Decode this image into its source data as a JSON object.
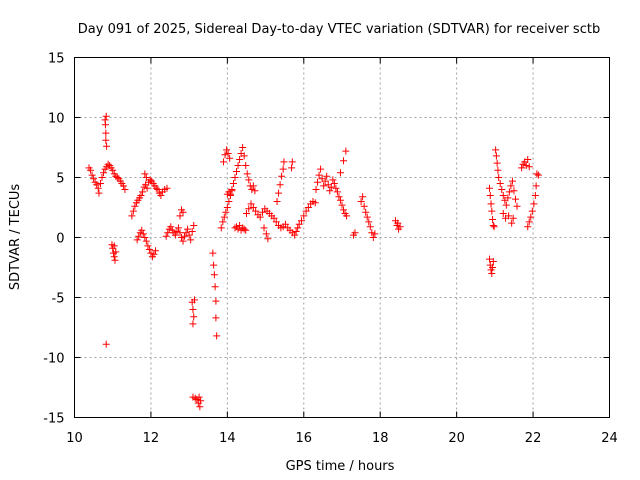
{
  "chart_data": {
    "type": "scatter",
    "title": "Day 091 of 2025, Sidereal Day-to-day VTEC variation (SDTVAR) for receiver sctb",
    "xlabel": "GPS time / hours",
    "ylabel": "SDTVAR / TECUs",
    "xlim": [
      10,
      24
    ],
    "ylim": [
      -15,
      15
    ],
    "x_ticks": [
      10,
      12,
      14,
      16,
      18,
      20,
      22,
      24
    ],
    "y_ticks": [
      -15,
      -10,
      -5,
      0,
      5,
      10,
      15
    ],
    "x_tick_labels": [
      "10",
      "12",
      "14",
      "16",
      "18",
      "20",
      "22",
      "24"
    ],
    "y_tick_labels": [
      "-15",
      "-10",
      "-5",
      "0",
      "5",
      "10",
      "15"
    ],
    "grid": true,
    "marker": "+",
    "series": [
      {
        "name": "SDTVAR",
        "color": "#ff0000",
        "points": [
          [
            10.38,
            5.8
          ],
          [
            10.42,
            5.6
          ],
          [
            10.46,
            5.2
          ],
          [
            10.5,
            4.9
          ],
          [
            10.54,
            4.6
          ],
          [
            10.58,
            4.4
          ],
          [
            10.62,
            4.1
          ],
          [
            10.64,
            3.7
          ],
          [
            10.68,
            4.5
          ],
          [
            10.72,
            5.0
          ],
          [
            10.76,
            5.4
          ],
          [
            10.8,
            5.7
          ],
          [
            10.84,
            5.9
          ],
          [
            10.88,
            6.1
          ],
          [
            10.92,
            6.0
          ],
          [
            10.96,
            5.8
          ],
          [
            11.0,
            5.6
          ],
          [
            11.04,
            5.3
          ],
          [
            11.08,
            5.1
          ],
          [
            11.12,
            5.0
          ],
          [
            11.16,
            4.9
          ],
          [
            11.2,
            4.7
          ],
          [
            11.24,
            4.5
          ],
          [
            11.28,
            4.3
          ],
          [
            11.32,
            4.0
          ],
          [
            10.8,
            9.8
          ],
          [
            10.81,
            9.4
          ],
          [
            10.82,
            8.7
          ],
          [
            10.82,
            8.1
          ],
          [
            10.83,
            10.1
          ],
          [
            10.84,
            7.6
          ],
          [
            10.83,
            -8.9
          ],
          [
            10.98,
            -0.6
          ],
          [
            11.0,
            -0.9
          ],
          [
            11.02,
            -1.3
          ],
          [
            11.04,
            -1.6
          ],
          [
            11.06,
            -1.9
          ],
          [
            11.08,
            -1.2
          ],
          [
            11.04,
            -0.7
          ],
          [
            11.5,
            1.8
          ],
          [
            11.54,
            2.2
          ],
          [
            11.58,
            2.6
          ],
          [
            11.62,
            2.9
          ],
          [
            11.66,
            3.1
          ],
          [
            11.7,
            3.3
          ],
          [
            11.74,
            3.5
          ],
          [
            11.78,
            3.8
          ],
          [
            11.82,
            4.2
          ],
          [
            11.86,
            4.4
          ],
          [
            11.9,
            4.1
          ],
          [
            11.94,
            4.6
          ],
          [
            11.98,
            4.8
          ],
          [
            12.02,
            4.7
          ],
          [
            12.06,
            4.5
          ],
          [
            12.1,
            4.3
          ],
          [
            12.14,
            4.1
          ],
          [
            12.18,
            4.0
          ],
          [
            12.22,
            3.7
          ],
          [
            12.26,
            3.5
          ],
          [
            12.3,
            3.8
          ],
          [
            12.36,
            4.0
          ],
          [
            12.42,
            4.1
          ],
          [
            11.84,
            5.3
          ],
          [
            11.88,
            5.0
          ],
          [
            11.64,
            -0.2
          ],
          [
            11.68,
            0.1
          ],
          [
            11.72,
            0.4
          ],
          [
            11.76,
            0.6
          ],
          [
            11.8,
            0.3
          ],
          [
            11.84,
            0.0
          ],
          [
            11.88,
            -0.3
          ],
          [
            11.92,
            -0.7
          ],
          [
            11.96,
            -1.0
          ],
          [
            12.0,
            -1.3
          ],
          [
            12.04,
            -1.6
          ],
          [
            12.08,
            -1.4
          ],
          [
            12.12,
            -1.1
          ],
          [
            12.4,
            0.1
          ],
          [
            12.44,
            0.4
          ],
          [
            12.48,
            0.7
          ],
          [
            12.52,
            0.9
          ],
          [
            12.56,
            0.6
          ],
          [
            12.6,
            0.4
          ],
          [
            12.64,
            0.2
          ],
          [
            12.68,
            0.5
          ],
          [
            12.72,
            0.8
          ],
          [
            12.76,
            0.4
          ],
          [
            12.8,
            0.0
          ],
          [
            12.84,
            -0.3
          ],
          [
            12.88,
            0.1
          ],
          [
            12.92,
            0.4
          ],
          [
            12.96,
            0.7
          ],
          [
            13.0,
            0.2
          ],
          [
            13.04,
            -0.2
          ],
          [
            13.08,
            0.5
          ],
          [
            13.12,
            1.0
          ],
          [
            12.76,
            1.8
          ],
          [
            12.8,
            2.3
          ],
          [
            12.84,
            2.1
          ],
          [
            13.08,
            -5.4
          ],
          [
            13.1,
            -6.0
          ],
          [
            13.12,
            -6.6
          ],
          [
            13.1,
            -7.2
          ],
          [
            13.14,
            -5.2
          ],
          [
            13.1,
            -13.3
          ],
          [
            13.16,
            -13.4
          ],
          [
            13.2,
            -13.5
          ],
          [
            13.24,
            -13.8
          ],
          [
            13.28,
            -14.1
          ],
          [
            13.3,
            -13.6
          ],
          [
            13.26,
            -13.3
          ],
          [
            13.62,
            -1.3
          ],
          [
            13.64,
            -2.3
          ],
          [
            13.66,
            -3.1
          ],
          [
            13.68,
            -4.1
          ],
          [
            13.7,
            -5.3
          ],
          [
            13.7,
            -6.7
          ],
          [
            13.72,
            -8.2
          ],
          [
            13.84,
            0.8
          ],
          [
            13.88,
            1.3
          ],
          [
            13.92,
            1.7
          ],
          [
            13.96,
            2.1
          ],
          [
            14.0,
            2.5
          ],
          [
            14.04,
            3.0
          ],
          [
            14.08,
            3.6
          ],
          [
            14.12,
            4.0
          ],
          [
            14.16,
            4.5
          ],
          [
            14.2,
            5.0
          ],
          [
            14.24,
            5.5
          ],
          [
            14.28,
            6.0
          ],
          [
            14.32,
            6.5
          ],
          [
            14.36,
            7.0
          ],
          [
            14.4,
            7.5
          ],
          [
            14.44,
            6.8
          ],
          [
            14.48,
            6.0
          ],
          [
            14.52,
            5.3
          ],
          [
            14.56,
            4.8
          ],
          [
            14.6,
            4.3
          ],
          [
            14.64,
            4.0
          ],
          [
            14.68,
            4.3
          ],
          [
            14.72,
            3.9
          ],
          [
            13.9,
            6.3
          ],
          [
            13.94,
            6.9
          ],
          [
            13.98,
            7.3
          ],
          [
            14.02,
            7.0
          ],
          [
            14.06,
            6.6
          ],
          [
            14.0,
            3.6
          ],
          [
            14.04,
            3.8
          ],
          [
            14.08,
            3.5
          ],
          [
            14.12,
            3.9
          ],
          [
            14.2,
            0.8
          ],
          [
            14.24,
            0.9
          ],
          [
            14.28,
            0.7
          ],
          [
            14.32,
            1.0
          ],
          [
            14.36,
            0.6
          ],
          [
            14.4,
            0.8
          ],
          [
            14.44,
            0.7
          ],
          [
            14.48,
            0.6
          ],
          [
            14.5,
            2.0
          ],
          [
            14.56,
            2.4
          ],
          [
            14.62,
            2.8
          ],
          [
            14.68,
            2.5
          ],
          [
            14.74,
            2.2
          ],
          [
            14.8,
            1.9
          ],
          [
            14.86,
            1.7
          ],
          [
            14.92,
            2.1
          ],
          [
            14.98,
            2.4
          ],
          [
            15.04,
            2.2
          ],
          [
            15.1,
            2.0
          ],
          [
            15.16,
            1.8
          ],
          [
            15.22,
            1.6
          ],
          [
            15.28,
            1.3
          ],
          [
            15.34,
            1.0
          ],
          [
            15.4,
            0.8
          ],
          [
            15.46,
            0.9
          ],
          [
            15.52,
            1.1
          ],
          [
            15.58,
            0.8
          ],
          [
            15.64,
            0.6
          ],
          [
            15.7,
            0.4
          ],
          [
            15.76,
            0.2
          ],
          [
            15.8,
            0.5
          ],
          [
            15.84,
            0.8
          ],
          [
            15.88,
            1.1
          ],
          [
            15.94,
            1.4
          ],
          [
            16.0,
            1.8
          ],
          [
            16.06,
            2.2
          ],
          [
            16.12,
            2.5
          ],
          [
            16.18,
            2.8
          ],
          [
            16.24,
            3.0
          ],
          [
            16.3,
            2.9
          ],
          [
            14.96,
            0.8
          ],
          [
            15.02,
            0.3
          ],
          [
            15.06,
            -0.1
          ],
          [
            15.3,
            3.0
          ],
          [
            15.34,
            3.7
          ],
          [
            15.38,
            4.4
          ],
          [
            15.42,
            5.1
          ],
          [
            15.46,
            5.7
          ],
          [
            15.48,
            6.3
          ],
          [
            15.68,
            5.8
          ],
          [
            15.7,
            6.3
          ],
          [
            16.32,
            4.0
          ],
          [
            16.36,
            4.6
          ],
          [
            16.4,
            5.2
          ],
          [
            16.44,
            5.7
          ],
          [
            16.48,
            4.9
          ],
          [
            16.52,
            4.3
          ],
          [
            16.56,
            4.7
          ],
          [
            16.6,
            5.1
          ],
          [
            16.64,
            4.4
          ],
          [
            16.68,
            3.9
          ],
          [
            16.72,
            4.2
          ],
          [
            16.76,
            4.8
          ],
          [
            16.8,
            4.5
          ],
          [
            16.84,
            4.1
          ],
          [
            16.88,
            3.8
          ],
          [
            16.92,
            3.4
          ],
          [
            16.96,
            3.1
          ],
          [
            17.0,
            2.7
          ],
          [
            17.04,
            2.3
          ],
          [
            17.08,
            2.0
          ],
          [
            17.12,
            1.8
          ],
          [
            16.96,
            5.4
          ],
          [
            17.04,
            6.4
          ],
          [
            17.1,
            7.2
          ],
          [
            17.3,
            0.2
          ],
          [
            17.34,
            0.4
          ],
          [
            17.5,
            3.0
          ],
          [
            17.54,
            3.4
          ],
          [
            17.58,
            2.6
          ],
          [
            17.62,
            2.1
          ],
          [
            17.66,
            1.7
          ],
          [
            17.7,
            1.3
          ],
          [
            17.74,
            0.9
          ],
          [
            17.78,
            0.4
          ],
          [
            17.82,
            0.0
          ],
          [
            17.86,
            0.3
          ],
          [
            18.4,
            1.4
          ],
          [
            18.44,
            1.0
          ],
          [
            18.48,
            0.7
          ],
          [
            18.52,
            0.9
          ],
          [
            18.46,
            1.2
          ],
          [
            20.86,
            4.1
          ],
          [
            20.88,
            3.5
          ],
          [
            20.9,
            2.8
          ],
          [
            20.92,
            2.2
          ],
          [
            20.94,
            1.5
          ],
          [
            20.96,
            1.0
          ],
          [
            20.98,
            0.9
          ],
          [
            20.86,
            -1.8
          ],
          [
            20.88,
            -2.3
          ],
          [
            20.9,
            -2.7
          ],
          [
            20.92,
            -3.0
          ],
          [
            20.94,
            -2.5
          ],
          [
            20.96,
            -2.0
          ],
          [
            21.02,
            7.3
          ],
          [
            21.04,
            6.8
          ],
          [
            21.06,
            6.2
          ],
          [
            21.08,
            5.6
          ],
          [
            21.1,
            5.0
          ],
          [
            21.14,
            4.5
          ],
          [
            21.18,
            4.0
          ],
          [
            21.22,
            3.5
          ],
          [
            21.26,
            3.1
          ],
          [
            21.3,
            2.7
          ],
          [
            21.34,
            3.3
          ],
          [
            21.38,
            3.8
          ],
          [
            21.42,
            4.3
          ],
          [
            21.46,
            4.7
          ],
          [
            21.5,
            3.9
          ],
          [
            21.54,
            3.2
          ],
          [
            21.58,
            2.6
          ],
          [
            21.22,
            2.0
          ],
          [
            21.28,
            1.6
          ],
          [
            21.36,
            1.8
          ],
          [
            21.44,
            1.2
          ],
          [
            21.48,
            1.6
          ],
          [
            21.7,
            5.8
          ],
          [
            21.74,
            6.1
          ],
          [
            21.78,
            6.3
          ],
          [
            21.82,
            6.0
          ],
          [
            21.86,
            6.5
          ],
          [
            21.9,
            5.9
          ],
          [
            21.86,
            0.9
          ],
          [
            21.9,
            1.3
          ],
          [
            21.94,
            1.7
          ],
          [
            21.98,
            2.2
          ],
          [
            22.02,
            2.8
          ],
          [
            22.06,
            3.5
          ],
          [
            22.08,
            4.3
          ],
          [
            22.1,
            5.3
          ],
          [
            22.14,
            5.2
          ]
        ]
      }
    ]
  }
}
